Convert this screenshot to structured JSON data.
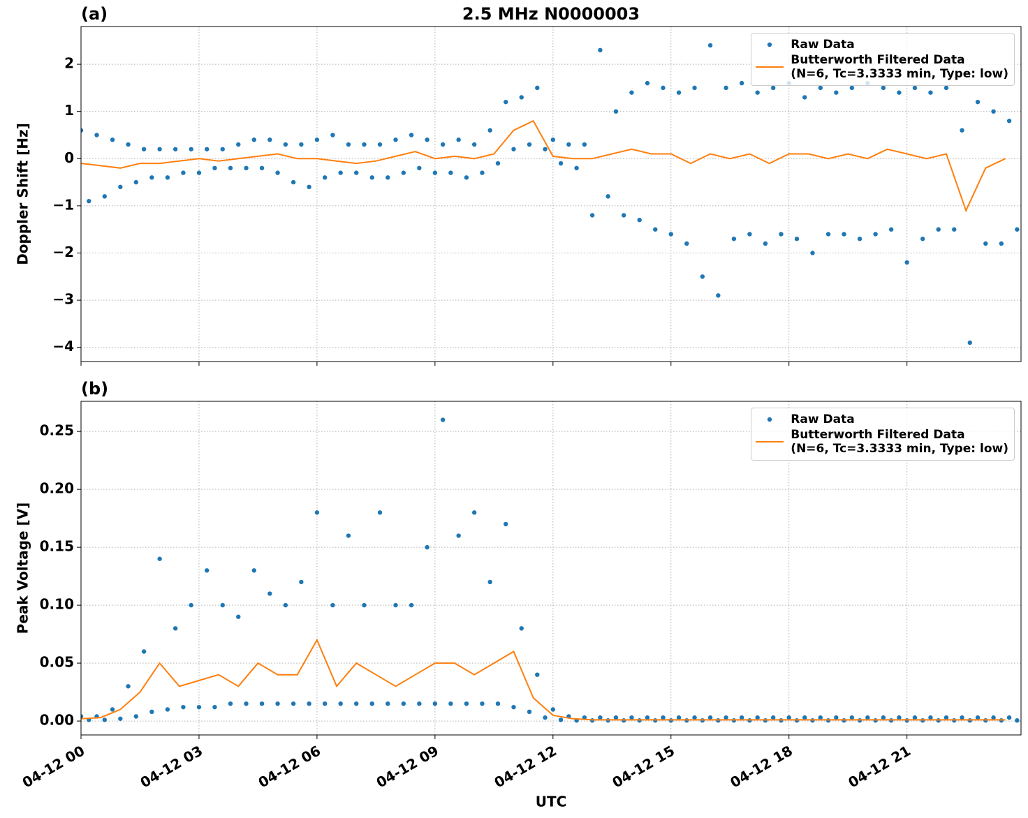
{
  "chart_data": [
    {
      "type": "line",
      "panel_label": "(a)",
      "title": "2.5 MHz N0000003",
      "ylabel": "Doppler Shift [Hz]",
      "xlim": [
        0,
        23.9
      ],
      "ylim": [
        -4.3,
        2.8
      ],
      "yticks": [
        {
          "value": -4,
          "label": "−4"
        },
        {
          "value": -3,
          "label": "−3"
        },
        {
          "value": -2,
          "label": "−2"
        },
        {
          "value": -1,
          "label": "−1"
        },
        0,
        1,
        2
      ],
      "grid": true,
      "legend": "upper right",
      "series": [
        {
          "name": "Raw Data",
          "color": "#1f77b4",
          "style": "dots",
          "x": [
            0,
            0.2,
            0.4,
            0.6,
            0.8,
            1,
            1.2,
            1.4,
            1.6,
            1.8,
            2,
            2.2,
            2.4,
            2.6,
            2.8,
            3,
            3.2,
            3.4,
            3.6,
            3.8,
            4,
            4.2,
            4.4,
            4.6,
            4.8,
            5,
            5.2,
            5.4,
            5.6,
            5.8,
            6,
            6.2,
            6.4,
            6.6,
            6.8,
            7,
            7.2,
            7.4,
            7.6,
            7.8,
            8,
            8.2,
            8.4,
            8.6,
            8.8,
            9,
            9.2,
            9.4,
            9.6,
            9.8,
            10,
            10.2,
            10.4,
            10.6,
            10.8,
            11,
            11.2,
            11.4,
            11.6,
            11.8,
            12,
            12.2,
            12.4,
            12.6,
            12.8,
            13,
            13.2,
            13.4,
            13.6,
            13.8,
            14,
            14.2,
            14.4,
            14.6,
            14.8,
            15,
            15.2,
            15.4,
            15.6,
            15.8,
            16,
            16.2,
            16.4,
            16.6,
            16.8,
            17,
            17.2,
            17.4,
            17.6,
            17.8,
            18,
            18.2,
            18.4,
            18.6,
            18.8,
            19,
            19.2,
            19.4,
            19.6,
            19.8,
            20,
            20.2,
            20.4,
            20.6,
            20.8,
            21,
            21.2,
            21.4,
            21.6,
            21.8,
            22,
            22.2,
            22.4,
            22.6,
            22.8,
            23,
            23.2,
            23.4,
            23.6,
            23.8
          ],
          "values": [
            0.6,
            -0.9,
            0.5,
            -0.8,
            0.4,
            -0.6,
            0.3,
            -0.5,
            0.2,
            -0.4,
            0.2,
            -0.4,
            0.2,
            -0.3,
            0.2,
            -0.3,
            0.2,
            -0.2,
            0.2,
            -0.2,
            0.3,
            -0.2,
            0.4,
            -0.2,
            0.4,
            -0.3,
            0.3,
            -0.5,
            0.3,
            -0.6,
            0.4,
            -0.4,
            0.5,
            -0.3,
            0.3,
            -0.3,
            0.3,
            -0.4,
            0.3,
            -0.4,
            0.4,
            -0.3,
            0.5,
            -0.2,
            0.4,
            -0.3,
            0.3,
            -0.3,
            0.4,
            -0.4,
            0.3,
            -0.3,
            0.6,
            -0.1,
            1.2,
            0.2,
            1.3,
            0.3,
            1.5,
            0.2,
            0.4,
            -0.1,
            0.3,
            -0.2,
            0.3,
            -1.2,
            2.3,
            -0.8,
            1.0,
            -1.2,
            1.4,
            -1.3,
            1.6,
            -1.5,
            1.5,
            -1.6,
            1.4,
            -1.8,
            1.5,
            -2.5,
            2.4,
            -2.9,
            1.5,
            -1.7,
            1.6,
            -1.6,
            1.4,
            -1.8,
            1.5,
            -1.6,
            1.6,
            -1.7,
            1.3,
            -2.0,
            1.5,
            -1.6,
            1.4,
            -1.6,
            1.5,
            -1.7,
            1.6,
            -1.6,
            1.5,
            -1.5,
            1.4,
            -2.2,
            1.5,
            -1.7,
            1.4,
            -1.5,
            1.5,
            -1.5,
            0.6,
            -3.9,
            1.2,
            -1.8,
            1.0,
            -1.8,
            0.8,
            -1.5
          ]
        },
        {
          "name": "Butterworth Filtered Data\n(N=6, Tc=3.3333 min, Type: low)",
          "color": "#ff7f0e",
          "style": "line",
          "x": [
            0,
            0.5,
            1,
            1.5,
            2,
            2.5,
            3,
            3.5,
            4,
            4.5,
            5,
            5.5,
            6,
            6.5,
            7,
            7.5,
            8,
            8.5,
            9,
            9.5,
            10,
            10.5,
            11,
            11.5,
            12,
            12.5,
            13,
            13.5,
            14,
            14.5,
            15,
            15.5,
            16,
            16.5,
            17,
            17.5,
            18,
            18.5,
            19,
            19.5,
            20,
            20.5,
            21,
            21.5,
            22,
            22.5,
            23,
            23.5
          ],
          "values": [
            -0.1,
            -0.15,
            -0.2,
            -0.1,
            -0.1,
            -0.05,
            0,
            -0.05,
            0,
            0.05,
            0.1,
            0,
            0,
            -0.05,
            -0.1,
            -0.05,
            0.05,
            0.15,
            0,
            0.05,
            0,
            0.1,
            0.6,
            0.8,
            0.05,
            0,
            0,
            0.1,
            0.2,
            0.1,
            0.1,
            -0.1,
            0.1,
            0,
            0.1,
            -0.1,
            0.1,
            0.1,
            0,
            0.1,
            0,
            0.2,
            0.1,
            0,
            0.1,
            -1.1,
            -0.2,
            0
          ]
        }
      ]
    },
    {
      "type": "line",
      "panel_label": "(b)",
      "ylabel": "Peak Voltage [V]",
      "xlabel": "UTC",
      "xlim": [
        0,
        23.9
      ],
      "ylim": [
        -0.012,
        0.276
      ],
      "xticks": [
        {
          "value": 0,
          "label": "04-12 00"
        },
        {
          "value": 3,
          "label": "04-12 03"
        },
        {
          "value": 6,
          "label": "04-12 06"
        },
        {
          "value": 9,
          "label": "04-12 09"
        },
        {
          "value": 12,
          "label": "04-12 12"
        },
        {
          "value": 15,
          "label": "04-12 15"
        },
        {
          "value": 18,
          "label": "04-12 18"
        },
        {
          "value": 21,
          "label": "04-12 21"
        }
      ],
      "yticks": [
        {
          "value": 0,
          "label": "0.00"
        },
        {
          "value": 0.05,
          "label": "0.05"
        },
        {
          "value": 0.1,
          "label": "0.10"
        },
        {
          "value": 0.15,
          "label": "0.15"
        },
        {
          "value": 0.2,
          "label": "0.20"
        },
        {
          "value": 0.25,
          "label": "0.25"
        }
      ],
      "grid": true,
      "legend": "upper right",
      "series": [
        {
          "name": "Raw Data",
          "color": "#1f77b4",
          "style": "dots",
          "x": [
            0,
            0.2,
            0.4,
            0.6,
            0.8,
            1,
            1.2,
            1.4,
            1.6,
            1.8,
            2,
            2.2,
            2.4,
            2.6,
            2.8,
            3,
            3.2,
            3.4,
            3.6,
            3.8,
            4,
            4.2,
            4.4,
            4.6,
            4.8,
            5,
            5.2,
            5.4,
            5.6,
            5.8,
            6,
            6.2,
            6.4,
            6.6,
            6.8,
            7,
            7.2,
            7.4,
            7.6,
            7.8,
            8,
            8.2,
            8.4,
            8.6,
            8.8,
            9,
            9.2,
            9.4,
            9.6,
            9.8,
            10,
            10.2,
            10.4,
            10.6,
            10.8,
            11,
            11.2,
            11.4,
            11.6,
            11.8,
            12,
            12.2,
            12.4,
            12.6,
            12.8,
            13,
            13.2,
            13.4,
            13.6,
            13.8,
            14,
            14.2,
            14.4,
            14.6,
            14.8,
            15,
            15.2,
            15.4,
            15.6,
            15.8,
            16,
            16.2,
            16.4,
            16.6,
            16.8,
            17,
            17.2,
            17.4,
            17.6,
            17.8,
            18,
            18.2,
            18.4,
            18.6,
            18.8,
            19,
            19.2,
            19.4,
            19.6,
            19.8,
            20,
            20.2,
            20.4,
            20.6,
            20.8,
            21,
            21.2,
            21.4,
            21.6,
            21.8,
            22,
            22.2,
            22.4,
            22.6,
            22.8,
            23,
            23.2,
            23.4,
            23.6,
            23.8
          ],
          "values": [
            0.004,
            0.001,
            0.004,
            0.001,
            0.01,
            0.002,
            0.03,
            0.004,
            0.06,
            0.008,
            0.14,
            0.01,
            0.08,
            0.012,
            0.1,
            0.012,
            0.13,
            0.012,
            0.1,
            0.015,
            0.09,
            0.015,
            0.13,
            0.015,
            0.11,
            0.015,
            0.1,
            0.015,
            0.12,
            0.015,
            0.18,
            0.015,
            0.1,
            0.015,
            0.16,
            0.015,
            0.1,
            0.015,
            0.18,
            0.015,
            0.1,
            0.015,
            0.1,
            0.015,
            0.15,
            0.015,
            0.26,
            0.015,
            0.16,
            0.015,
            0.18,
            0.015,
            0.12,
            0.015,
            0.17,
            0.012,
            0.08,
            0.008,
            0.04,
            0.003,
            0.01,
            0.001,
            0.004,
            0.0005,
            0.003,
            0.0005,
            0.003,
            0.0005,
            0.003,
            0.0005,
            0.003,
            0.0005,
            0.003,
            0.0005,
            0.003,
            0.0005,
            0.003,
            0.0005,
            0.003,
            0.0005,
            0.003,
            0.0005,
            0.003,
            0.0005,
            0.003,
            0.0005,
            0.003,
            0.0005,
            0.003,
            0.0005,
            0.003,
            0.0005,
            0.003,
            0.0005,
            0.003,
            0.0005,
            0.003,
            0.0005,
            0.003,
            0.0005,
            0.003,
            0.0005,
            0.003,
            0.0005,
            0.003,
            0.0005,
            0.003,
            0.0005,
            0.003,
            0.0005,
            0.003,
            0.0005,
            0.003,
            0.0005,
            0.003,
            0.0005,
            0.003,
            0.0005,
            0.003,
            0.0005
          ]
        },
        {
          "name": "Butterworth Filtered Data\n(N=6, Tc=3.3333 min, Type: low)",
          "color": "#ff7f0e",
          "style": "line",
          "x": [
            0,
            0.5,
            1,
            1.5,
            2,
            2.5,
            3,
            3.5,
            4,
            4.5,
            5,
            5.5,
            6,
            6.5,
            7,
            7.5,
            8,
            8.5,
            9,
            9.5,
            10,
            10.5,
            11,
            11.5,
            12,
            12.5,
            13,
            13.5,
            14,
            14.5,
            15,
            15.5,
            16,
            16.5,
            17,
            17.5,
            18,
            18.5,
            19,
            19.5,
            20,
            20.5,
            21,
            21.5,
            22,
            22.5,
            23,
            23.5
          ],
          "values": [
            0.002,
            0.003,
            0.01,
            0.025,
            0.05,
            0.03,
            0.035,
            0.04,
            0.03,
            0.05,
            0.04,
            0.04,
            0.07,
            0.03,
            0.05,
            0.04,
            0.03,
            0.04,
            0.05,
            0.05,
            0.04,
            0.05,
            0.06,
            0.02,
            0.005,
            0.002,
            0.001,
            0.001,
            0.001,
            0.001,
            0.001,
            0.001,
            0.001,
            0.001,
            0.001,
            0.001,
            0.001,
            0.001,
            0.001,
            0.001,
            0.001,
            0.001,
            0.001,
            0.001,
            0.001,
            0.001,
            0.001,
            0.001
          ]
        }
      ]
    }
  ]
}
